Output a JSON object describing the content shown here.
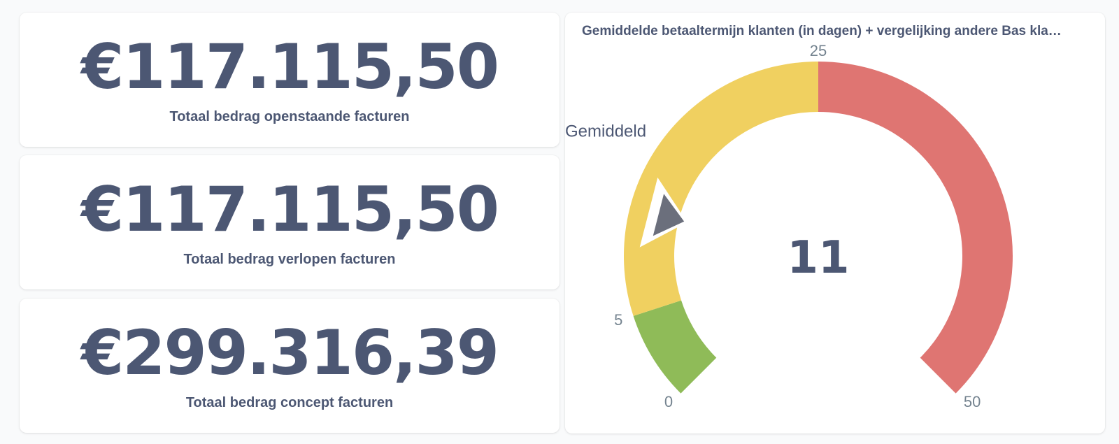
{
  "scalars": [
    {
      "value": "€117.115,50",
      "label": "Totaal bedrag openstaande facturen"
    },
    {
      "value": "€117.115,50",
      "label": "Totaal bedrag verlopen facturen"
    },
    {
      "value": "€299.316,39",
      "label": "Totaal bedrag concept facturen"
    }
  ],
  "chart_data": {
    "type": "gauge",
    "title": "Gemiddelde betaaltermijn klanten (in dagen) + vergelijking andere Bas kla…",
    "value": 11,
    "value_label": "11",
    "range": [
      0,
      50
    ],
    "segments": [
      {
        "min": 0,
        "max": 5,
        "color": "#8fbb58"
      },
      {
        "min": 5,
        "max": 25,
        "color": "#f0d060",
        "label": "Gemiddeld"
      },
      {
        "min": 25,
        "max": 50,
        "color": "#df7572"
      }
    ],
    "tick_labels": [
      {
        "value": 0,
        "label": "0"
      },
      {
        "value": 5,
        "label": "5"
      },
      {
        "value": 25,
        "label": "25"
      },
      {
        "value": 50,
        "label": "50"
      }
    ],
    "needle_color": "#6b6f7c"
  }
}
